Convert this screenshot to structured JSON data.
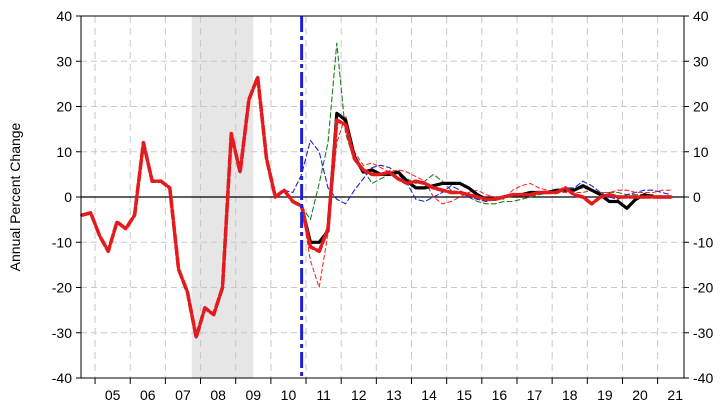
{
  "chart_data": {
    "type": "line",
    "ylabel": "Annual Percent Change",
    "ylim": [
      -40,
      40
    ],
    "yticks": [
      -40,
      -30,
      -20,
      -10,
      0,
      10,
      20,
      30,
      40
    ],
    "xlim": [
      2004.6,
      2021.75
    ],
    "xtick_labels": [
      "05",
      "06",
      "07",
      "08",
      "09",
      "10",
      "11",
      "12",
      "13",
      "14",
      "15",
      "16",
      "17",
      "18",
      "19",
      "20",
      "21"
    ],
    "grid": true,
    "recession_shading": [
      2007.75,
      2009.5
    ],
    "forecast_start_line": 2010.875,
    "colors": {
      "history": "#2b2bd0",
      "baseline": "#e41a1c",
      "actual": "#000000",
      "alt_green": "#1a7f1a",
      "alt_blue": "#1f1fd6",
      "alt_red": "#ff2a2a",
      "recession": "#e6e6e6",
      "forecast_line": "#1f1fd6"
    },
    "series": [
      {
        "style": "history",
        "x": [
          2004.625,
          2004.875,
          2005.125,
          2005.375,
          2005.625,
          2005.875,
          2006.125,
          2006.375,
          2006.625,
          2006.875,
          2007.125,
          2007.375,
          2007.625,
          2007.875,
          2008.125,
          2008.375,
          2008.625,
          2008.875,
          2009.125,
          2009.375,
          2009.625,
          2009.875,
          2010.125,
          2010.375,
          2010.625,
          2010.875
        ],
        "y": [
          -4,
          -3.5,
          -8.5,
          -12,
          -5.5,
          -7,
          -4,
          12,
          3.5,
          3.5,
          2,
          -16,
          -21,
          -31,
          -24.5,
          -26,
          -20,
          14,
          5.5,
          21.5,
          26.5,
          8.5,
          0,
          1.5,
          -1,
          -2
        ]
      },
      {
        "style": "baseline",
        "x": [
          2004.625,
          2004.875,
          2005.125,
          2005.375,
          2005.625,
          2005.875,
          2006.125,
          2006.375,
          2006.625,
          2006.875,
          2007.125,
          2007.375,
          2007.625,
          2007.875,
          2008.125,
          2008.375,
          2008.625,
          2008.875,
          2009.125,
          2009.375,
          2009.625,
          2009.875,
          2010.125,
          2010.375,
          2010.625,
          2010.875,
          2011.125,
          2011.375,
          2011.625,
          2011.875,
          2012.125,
          2012.375,
          2012.625,
          2012.875,
          2013.125,
          2013.375,
          2013.625,
          2013.875,
          2014.125,
          2014.375,
          2014.625,
          2014.875,
          2015.125,
          2015.375,
          2015.625,
          2015.875,
          2016.125,
          2016.375,
          2016.625,
          2016.875,
          2017.125,
          2017.375,
          2017.625,
          2017.875,
          2018.125,
          2018.375,
          2018.625,
          2018.875,
          2019.125,
          2019.375,
          2019.625,
          2019.875,
          2020.125,
          2020.375,
          2020.625,
          2020.875,
          2021.125,
          2021.375
        ],
        "y": [
          -4,
          -3.5,
          -8.5,
          -12,
          -5.5,
          -7,
          -4,
          12,
          3.5,
          3.5,
          2,
          -16,
          -21,
          -31,
          -24.5,
          -26,
          -20,
          14,
          5.5,
          21.5,
          26.5,
          8.5,
          0,
          1.5,
          -1,
          -2,
          -11,
          -12,
          -7,
          17,
          16,
          8.5,
          6,
          5,
          5,
          5.5,
          4,
          3,
          3.5,
          3,
          2,
          1.5,
          1,
          1,
          0.5,
          0,
          -0.5,
          -0.5,
          0,
          0.5,
          0.5,
          0.5,
          1,
          1,
          1,
          2,
          0.5,
          0,
          -1.5,
          0,
          0.5,
          0,
          0,
          0,
          0,
          0,
          0,
          0
        ]
      },
      {
        "style": "actual",
        "x": [
          2010.875,
          2011.125,
          2011.375,
          2011.625,
          2011.875,
          2012.125,
          2012.375,
          2012.625,
          2012.875,
          2013.125,
          2013.375,
          2013.625,
          2013.875,
          2014.125,
          2014.375,
          2014.625,
          2014.875,
          2015.125,
          2015.375,
          2015.625,
          2015.875,
          2016.125,
          2016.375,
          2016.625,
          2016.875,
          2017.125,
          2017.375,
          2017.625,
          2017.875,
          2018.125,
          2018.375,
          2018.625,
          2018.875,
          2019.125,
          2019.375,
          2019.625,
          2019.875,
          2020.125,
          2020.375,
          2020.625,
          2020.875,
          2021.125,
          2021.375
        ],
        "y": [
          -2,
          -10,
          -10,
          -7.5,
          18.5,
          17,
          9,
          5.5,
          6,
          5,
          5,
          5.5,
          3.5,
          2,
          2,
          2.5,
          3,
          3,
          3,
          2,
          0.5,
          -0.5,
          -0.5,
          0,
          0.5,
          0.5,
          1,
          1,
          1,
          1.5,
          1.5,
          1.5,
          2.5,
          1.5,
          0.5,
          -1,
          -1,
          -2.5,
          -0.5,
          0.5,
          0,
          0,
          0
        ]
      },
      {
        "style": "alt_green",
        "x": [
          2010.875,
          2011.125,
          2011.375,
          2011.625,
          2011.875,
          2012.125,
          2012.375,
          2012.625,
          2012.875,
          2013.125,
          2013.375,
          2013.625,
          2013.875,
          2014.125,
          2014.375,
          2014.625,
          2014.875,
          2015.125,
          2015.375,
          2015.625,
          2015.875,
          2016.125,
          2016.375,
          2016.625,
          2016.875,
          2017.125,
          2017.375,
          2017.625,
          2017.875,
          2018.125,
          2018.375,
          2018.625,
          2018.875,
          2019.125,
          2019.375,
          2019.625,
          2019.875,
          2020.125,
          2020.375,
          2020.625,
          2020.875
        ],
        "y": [
          -2,
          -5,
          3,
          12,
          34,
          14,
          8,
          6,
          3,
          4,
          5,
          5.5,
          4,
          3,
          3.5,
          5,
          3.5,
          1.5,
          1,
          0,
          -1,
          -1.5,
          -1.5,
          -1,
          -1,
          -0.5,
          0,
          0.5,
          1,
          1,
          1.5,
          1.5,
          2,
          1.5,
          1,
          1,
          1,
          0.5,
          0.5,
          0.5,
          0.5
        ]
      },
      {
        "style": "alt_blue",
        "x": [
          2010.375,
          2010.625,
          2010.875,
          2011.125,
          2011.375,
          2011.625,
          2011.875,
          2012.125,
          2012.375,
          2012.625,
          2012.875,
          2013.125,
          2013.375,
          2013.625,
          2013.875,
          2014.125,
          2014.375,
          2014.625,
          2014.875,
          2015.125,
          2015.375,
          2015.625,
          2015.875,
          2016.125,
          2016.375,
          2016.625,
          2016.875,
          2017.125,
          2017.375,
          2017.625,
          2017.875,
          2018.125,
          2018.375,
          2018.625,
          2018.875,
          2019.125,
          2019.375,
          2019.625,
          2019.875,
          2020.125,
          2020.375,
          2020.625,
          2020.875,
          2021.125,
          2021.375
        ],
        "y": [
          1.5,
          1,
          5,
          12.5,
          10,
          2,
          -0.5,
          -1.5,
          1.5,
          4,
          6.5,
          7,
          6.5,
          5,
          3,
          -0.5,
          -1,
          0,
          1,
          2.5,
          1.5,
          0,
          -0.5,
          -1,
          -0.5,
          0,
          0.5,
          0.5,
          1,
          1,
          1,
          1.5,
          2,
          2,
          3.5,
          2.5,
          1,
          0,
          -0.5,
          0.5,
          1,
          1.5,
          1.5,
          1,
          0.5
        ]
      },
      {
        "style": "alt_red",
        "x": [
          2010.875,
          2011.125,
          2011.375,
          2011.625,
          2011.875,
          2012.125,
          2012.375,
          2012.625,
          2012.875,
          2013.125,
          2013.375,
          2013.625,
          2013.875,
          2014.125,
          2014.375,
          2014.625,
          2014.875,
          2015.125,
          2015.375,
          2015.625,
          2015.875,
          2016.125,
          2016.375,
          2016.625,
          2016.875,
          2017.125,
          2017.375,
          2017.625,
          2017.875,
          2018.125,
          2018.375,
          2018.625,
          2018.875,
          2019.125,
          2019.375,
          2019.625,
          2019.875,
          2020.125,
          2020.375,
          2020.625,
          2020.875,
          2021.125,
          2021.375
        ],
        "y": [
          -2,
          -14,
          -20,
          -8,
          12,
          18,
          10,
          7,
          7.5,
          6.5,
          5.5,
          6,
          5.5,
          4.5,
          3.5,
          0,
          -1.5,
          -1,
          0,
          1,
          1.5,
          0.5,
          0,
          -0.5,
          1.5,
          2.5,
          3,
          2,
          1.5,
          1,
          1,
          1,
          1,
          1.5,
          1,
          1,
          1.5,
          1.5,
          1,
          1,
          1,
          1.5,
          1.5
        ]
      }
    ]
  }
}
